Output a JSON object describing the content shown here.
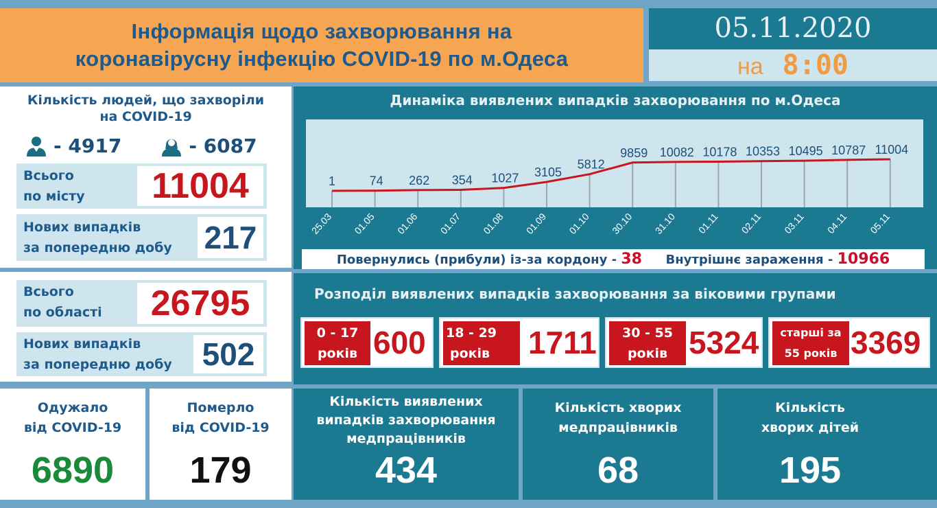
{
  "header": {
    "title_line1": "Інформація щодо захворювання на",
    "title_line2": "коронавірусну інфекцію COVID-19 по м.Одеса",
    "date": "05.11.2020",
    "time_prefix": "на",
    "time": "8:00"
  },
  "city": {
    "heading_line1": "Кількість людей, що захворіли",
    "heading_line2": "на COVID-19",
    "male_icon": "male-person-icon",
    "male_count": "- 4917",
    "female_icon": "female-person-icon",
    "female_count": "- 6087",
    "total_label_line1": "Всього",
    "total_label_line2": "по місту",
    "total_value": "11004",
    "new_label_line1": "Нових випадків",
    "new_label_line2": "за попередню добу",
    "new_value": "217"
  },
  "region": {
    "total_label_line1": "Всього",
    "total_label_line2": "по області",
    "total_value": "26795",
    "new_label_line1": "Нових випадків",
    "new_label_line2": "за попередню добу",
    "new_value": "502"
  },
  "chart_data": {
    "type": "line",
    "title": "Динаміка виявлених випадків захворювання по м.Одеса",
    "categories": [
      "25.03",
      "01.05",
      "01.06",
      "01.07",
      "01.08",
      "01.09",
      "01.10",
      "30.10",
      "31.10",
      "01.11",
      "02.11",
      "03.11",
      "04.11",
      "05.11"
    ],
    "values": [
      1,
      74,
      262,
      354,
      1027,
      3105,
      5812,
      9859,
      10082,
      10178,
      10353,
      10495,
      10787,
      11004
    ],
    "xlabel": "",
    "ylabel": "",
    "grid": "vertical drop lines",
    "line_color": "#c8161f"
  },
  "chart_footer": {
    "returned_label": "Повернулись (прибули) із-за кордону -",
    "returned_value": "38",
    "internal_label": "Внутрішнє зараження -",
    "internal_value": "10966"
  },
  "age_groups": {
    "title": "Розподіл виявлених випадків захворювання за віковими групами",
    "groups": [
      {
        "line1": "0 - 17",
        "line2": "років",
        "value": "600"
      },
      {
        "line1": "18 - 29",
        "line2": "років",
        "value": "1711"
      },
      {
        "line1": "30 - 55",
        "line2": "років",
        "value": "5324"
      },
      {
        "line1": "старші за",
        "line2": "55 років",
        "value": "3369"
      }
    ]
  },
  "bottom": {
    "recovered": {
      "line1": "Одужало",
      "line2": "від COVID-19",
      "value": "6890",
      "color": "#1a8a3a"
    },
    "died": {
      "line1": "Померло",
      "line2": "від COVID-19",
      "value": "179",
      "color": "#111111"
    },
    "medics_detected": {
      "line1": "Кількість виявлених",
      "line2": "випадків захворювання",
      "line3": "медпрацівників",
      "value": "434"
    },
    "medics_sick": {
      "line1": "Кількість хворих",
      "line2": "медпрацівників",
      "value": "68"
    },
    "children_sick": {
      "line1": "Кількість",
      "line2": "хворих дітей",
      "value": "195"
    }
  },
  "colors": {
    "orange": "#f6a553",
    "teal": "#1b7a92",
    "light_blue": "#cfe5ee",
    "navy_text": "#1e5a8c",
    "red": "#c8161f",
    "green": "#1a8a3a"
  }
}
